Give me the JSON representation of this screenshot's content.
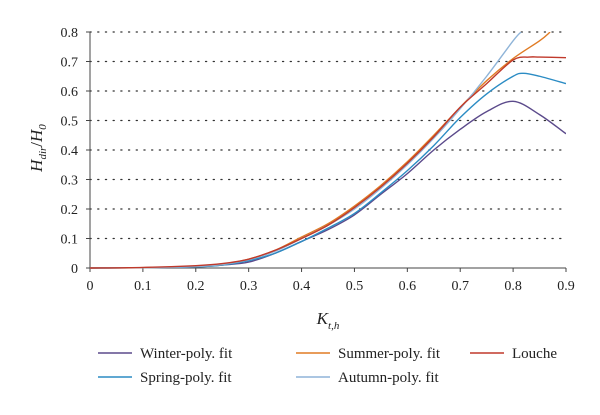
{
  "chart_data": {
    "type": "line",
    "xlabel_main": "K",
    "xlabel_sub": "t,h",
    "ylabel_num_main": "H",
    "ylabel_num_sub": "dir",
    "ylabel_sep": "/",
    "ylabel_den_main": "H",
    "ylabel_den_sub": "0",
    "xlim": [
      0,
      0.9
    ],
    "ylim": [
      0,
      0.8
    ],
    "x_ticks": [
      "0",
      "0.1",
      "0.2",
      "0.3",
      "0.4",
      "0.5",
      "0.6",
      "0.7",
      "0.8",
      "0.9"
    ],
    "y_ticks": [
      "0",
      "0.1",
      "0.2",
      "0.3",
      "0.4",
      "0.5",
      "0.6",
      "0.7",
      "0.8"
    ],
    "grid": "horizontal dotted",
    "legend_position": "bottom",
    "series": [
      {
        "name": "Winter-poly. fit",
        "color": "#5b4a8b",
        "points": [
          [
            0,
            0
          ],
          [
            0.1,
            0.001
          ],
          [
            0.2,
            0.004
          ],
          [
            0.25,
            0.01
          ],
          [
            0.3,
            0.02
          ],
          [
            0.35,
            0.05
          ],
          [
            0.4,
            0.09
          ],
          [
            0.45,
            0.13
          ],
          [
            0.5,
            0.18
          ],
          [
            0.55,
            0.25
          ],
          [
            0.6,
            0.32
          ],
          [
            0.65,
            0.4
          ],
          [
            0.7,
            0.47
          ],
          [
            0.75,
            0.53
          ],
          [
            0.8,
            0.565
          ],
          [
            0.85,
            0.52
          ],
          [
            0.9,
            0.455
          ]
        ]
      },
      {
        "name": "Spring-poly. fit",
        "color": "#2b8cc4",
        "points": [
          [
            0,
            0
          ],
          [
            0.1,
            0.001
          ],
          [
            0.2,
            0.004
          ],
          [
            0.25,
            0.01
          ],
          [
            0.3,
            0.025
          ],
          [
            0.35,
            0.05
          ],
          [
            0.4,
            0.09
          ],
          [
            0.45,
            0.135
          ],
          [
            0.5,
            0.185
          ],
          [
            0.55,
            0.255
          ],
          [
            0.6,
            0.33
          ],
          [
            0.65,
            0.415
          ],
          [
            0.7,
            0.51
          ],
          [
            0.75,
            0.59
          ],
          [
            0.8,
            0.65
          ],
          [
            0.82,
            0.66
          ],
          [
            0.85,
            0.65
          ],
          [
            0.9,
            0.625
          ]
        ]
      },
      {
        "name": "Summer-poly. fit",
        "color": "#e07b24",
        "points": [
          [
            0,
            0
          ],
          [
            0.1,
            0.001
          ],
          [
            0.2,
            0.006
          ],
          [
            0.25,
            0.012
          ],
          [
            0.3,
            0.03
          ],
          [
            0.35,
            0.06
          ],
          [
            0.4,
            0.105
          ],
          [
            0.45,
            0.15
          ],
          [
            0.5,
            0.21
          ],
          [
            0.55,
            0.28
          ],
          [
            0.6,
            0.36
          ],
          [
            0.65,
            0.45
          ],
          [
            0.7,
            0.545
          ],
          [
            0.75,
            0.635
          ],
          [
            0.8,
            0.71
          ],
          [
            0.85,
            0.77
          ],
          [
            0.87,
            0.8
          ]
        ]
      },
      {
        "name": "Autumn-poly. fit",
        "color": "#8fb4d8",
        "points": [
          [
            0,
            0
          ],
          [
            0.1,
            0.001
          ],
          [
            0.2,
            0.005
          ],
          [
            0.25,
            0.012
          ],
          [
            0.3,
            0.028
          ],
          [
            0.35,
            0.057
          ],
          [
            0.4,
            0.1
          ],
          [
            0.45,
            0.145
          ],
          [
            0.5,
            0.2
          ],
          [
            0.55,
            0.27
          ],
          [
            0.6,
            0.35
          ],
          [
            0.65,
            0.44
          ],
          [
            0.7,
            0.54
          ],
          [
            0.75,
            0.65
          ],
          [
            0.8,
            0.77
          ],
          [
            0.815,
            0.8
          ]
        ]
      },
      {
        "name": "Louche",
        "color": "#c0392b",
        "points": [
          [
            0,
            0
          ],
          [
            0.1,
            0.002
          ],
          [
            0.2,
            0.008
          ],
          [
            0.25,
            0.015
          ],
          [
            0.3,
            0.03
          ],
          [
            0.35,
            0.06
          ],
          [
            0.4,
            0.1
          ],
          [
            0.45,
            0.145
          ],
          [
            0.5,
            0.205
          ],
          [
            0.55,
            0.275
          ],
          [
            0.6,
            0.355
          ],
          [
            0.65,
            0.445
          ],
          [
            0.7,
            0.545
          ],
          [
            0.75,
            0.625
          ],
          [
            0.8,
            0.705
          ],
          [
            0.83,
            0.715
          ],
          [
            0.85,
            0.715
          ],
          [
            0.9,
            0.713
          ]
        ]
      }
    ]
  }
}
